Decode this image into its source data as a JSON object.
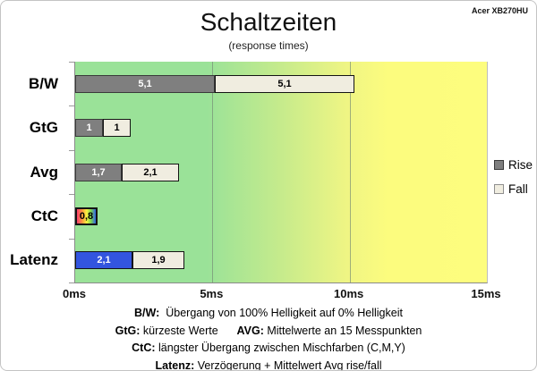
{
  "brand": "Acer XB270HU",
  "header": {
    "title": "Schaltzeiten",
    "subtitle": "(response times)"
  },
  "legend": {
    "position": "right",
    "items": [
      {
        "label": "Rise",
        "swatch": "rise",
        "color": "#7F7F7F"
      },
      {
        "label": "Fall",
        "swatch": "fall",
        "color": "#F0EDE0"
      }
    ]
  },
  "chart_data": {
    "type": "bar",
    "orientation": "horizontal",
    "title": "Schaltzeiten (response times)",
    "unit": "ms",
    "xlim": [
      0,
      15
    ],
    "grid": true,
    "grid_ms": [
      5,
      10
    ],
    "x_ticks": [
      {
        "label": "0ms",
        "ms": 0
      },
      {
        "label": "5ms",
        "ms": 5
      },
      {
        "label": "10ms",
        "ms": 10
      },
      {
        "label": "15ms",
        "ms": 15
      }
    ],
    "background_gradient": [
      "#9AE298",
      "#FDFD7E"
    ],
    "categories": [
      "B/W",
      "GtG",
      "Avg",
      "CtC",
      "Latenz"
    ],
    "series": [
      {
        "name": "Rise",
        "color": "#7F7F7F",
        "values": [
          5.1,
          1.0,
          1.7,
          0.8,
          2.1
        ]
      },
      {
        "name": "Fall",
        "color": "#F0EDE0",
        "values": [
          5.1,
          1.0,
          2.1,
          null,
          1.9
        ]
      }
    ],
    "rows": [
      {
        "category": "B/W",
        "segments": [
          {
            "value_label": "5,1",
            "ms": 5.1,
            "style": "rise"
          },
          {
            "value_label": "5,1",
            "ms": 5.1,
            "style": "fall"
          }
        ]
      },
      {
        "category": "GtG",
        "segments": [
          {
            "value_label": "1",
            "ms": 1.0,
            "style": "rise"
          },
          {
            "value_label": "1",
            "ms": 1.0,
            "style": "fall"
          }
        ]
      },
      {
        "category": "Avg",
        "segments": [
          {
            "value_label": "1,7",
            "ms": 1.7,
            "style": "rise"
          },
          {
            "value_label": "2,1",
            "ms": 2.1,
            "style": "fall"
          }
        ]
      },
      {
        "category": "CtC",
        "segments": [
          {
            "value_label": "0,8",
            "ms": 0.8,
            "style": "rainbow"
          }
        ]
      },
      {
        "category": "Latenz",
        "segments": [
          {
            "value_label": "2,1",
            "ms": 2.1,
            "style": "latency"
          },
          {
            "value_label": "1,9",
            "ms": 1.9,
            "style": "fall"
          }
        ]
      }
    ]
  },
  "footer": {
    "lines": [
      {
        "key": "bw",
        "parts": [
          {
            "text": "B/W:",
            "bold": true
          },
          {
            "text": "  Übergang von 100% Helligkeit auf 0% Helligkeit",
            "bold": false
          }
        ]
      },
      {
        "key": "gtg-avg",
        "parts": [
          {
            "text": "GtG:",
            "bold": true
          },
          {
            "text": " kürzeste Werte      ",
            "bold": false
          },
          {
            "text": "AVG:",
            "bold": true
          },
          {
            "text": " Mittelwerte an 15 Messpunkten",
            "bold": false
          }
        ]
      },
      {
        "key": "ctc",
        "parts": [
          {
            "text": "CtC:",
            "bold": true
          },
          {
            "text": " längster Übergang zwischen Mischfarben (C,M,Y)",
            "bold": false
          }
        ]
      },
      {
        "key": "latenz",
        "parts": [
          {
            "text": "Latenz:",
            "bold": true
          },
          {
            "text": " Verzögerung + Mittelwert Avg rise/fall",
            "bold": false
          }
        ]
      }
    ]
  },
  "colors": {
    "plot_green": "#9AE298",
    "plot_yellow": "#FDFD7E",
    "rise_gray": "#7F7F7F",
    "fall_cream": "#F0EDE0",
    "latency_blue": "#3355DF",
    "ctc_rainbow": [
      "#FA3C6E",
      "#FB9A3E",
      "#FAF33F",
      "#7ED74D",
      "#2F63E8"
    ],
    "gridline": "#738773"
  }
}
